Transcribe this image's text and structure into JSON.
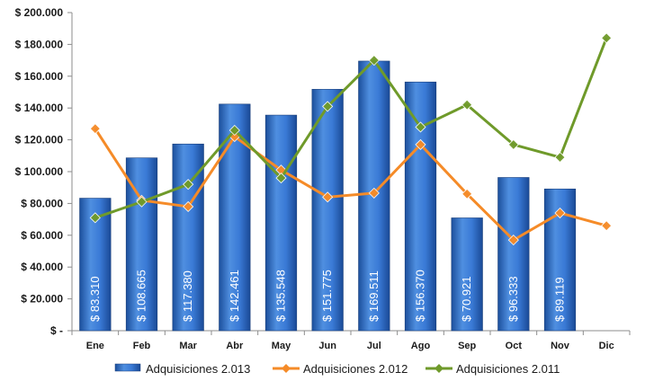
{
  "chart_data": {
    "type": "bar",
    "categories": [
      "Ene",
      "Feb",
      "Mar",
      "Abr",
      "May",
      "Jun",
      "Jul",
      "Ago",
      "Sep",
      "Oct",
      "Nov",
      "Dic"
    ],
    "y_ticks": [
      "$ -",
      "$ 20.000",
      "$ 40.000",
      "$ 60.000",
      "$ 80.000",
      "$ 100.000",
      "$ 120.000",
      "$ 140.000",
      "$ 160.000",
      "$ 180.000",
      "$ 200.000"
    ],
    "ylim": [
      0,
      200000
    ],
    "grid": false,
    "legend_position": "bottom",
    "series": [
      {
        "name": "Adquisiciones 2.013",
        "kind": "bar",
        "color": "#2f6fc8",
        "values": [
          83310,
          108665,
          117380,
          142461,
          135548,
          151775,
          169511,
          156370,
          70921,
          96333,
          89119,
          null
        ],
        "labels": [
          "$ 83.310",
          "$ 108.665",
          "$ 117.380",
          "$ 142.461",
          "$ 135.548",
          "$ 151.775",
          "$ 169.511",
          "$ 156.370",
          "$ 70.921",
          "$ 96.333",
          "$ 89.119",
          ""
        ]
      },
      {
        "name": "Adquisiciones 2.012",
        "kind": "line",
        "color": "#f58b28",
        "values": [
          127000,
          82000,
          78000,
          122000,
          101000,
          84000,
          86500,
          117000,
          86000,
          57000,
          74000,
          66000
        ]
      },
      {
        "name": "Adquisiciones 2.011",
        "kind": "line",
        "color": "#6f9a2a",
        "values": [
          71000,
          81000,
          92000,
          126000,
          96000,
          141000,
          170000,
          128000,
          142000,
          117000,
          109000,
          184000
        ]
      }
    ]
  }
}
